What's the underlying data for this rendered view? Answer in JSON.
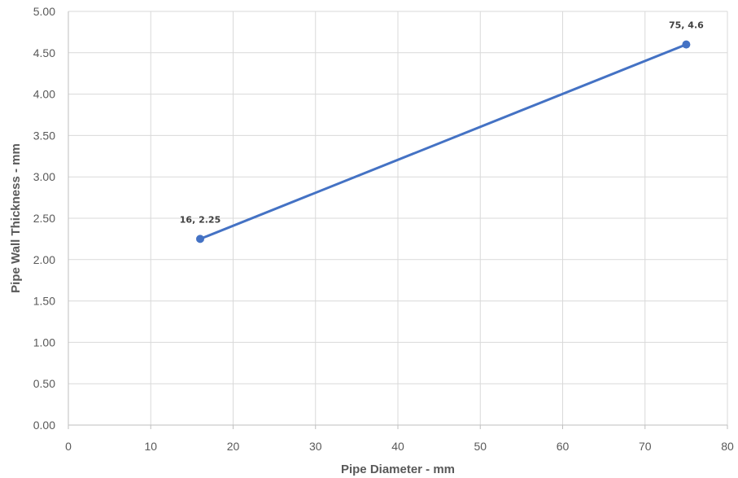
{
  "chart_data": {
    "type": "line",
    "title": "",
    "xlabel": "Pipe Diameter - mm",
    "ylabel": "Pipe Wall Thickness - mm",
    "xlim": [
      0,
      80
    ],
    "ylim": [
      0,
      5
    ],
    "x_ticks": [
      "0",
      "10",
      "20",
      "30",
      "40",
      "50",
      "60",
      "70",
      "80"
    ],
    "y_ticks": [
      "0.00",
      "0.50",
      "1.00",
      "1.50",
      "2.00",
      "2.50",
      "3.00",
      "3.50",
      "4.00",
      "4.50",
      "5.00"
    ],
    "grid": true,
    "legend": "none",
    "series": [
      {
        "color": "#4472C4",
        "x": [
          16,
          75
        ],
        "y": [
          2.25,
          4.6
        ],
        "labels": [
          "16, 2.25",
          "75, 4.6"
        ]
      }
    ]
  }
}
